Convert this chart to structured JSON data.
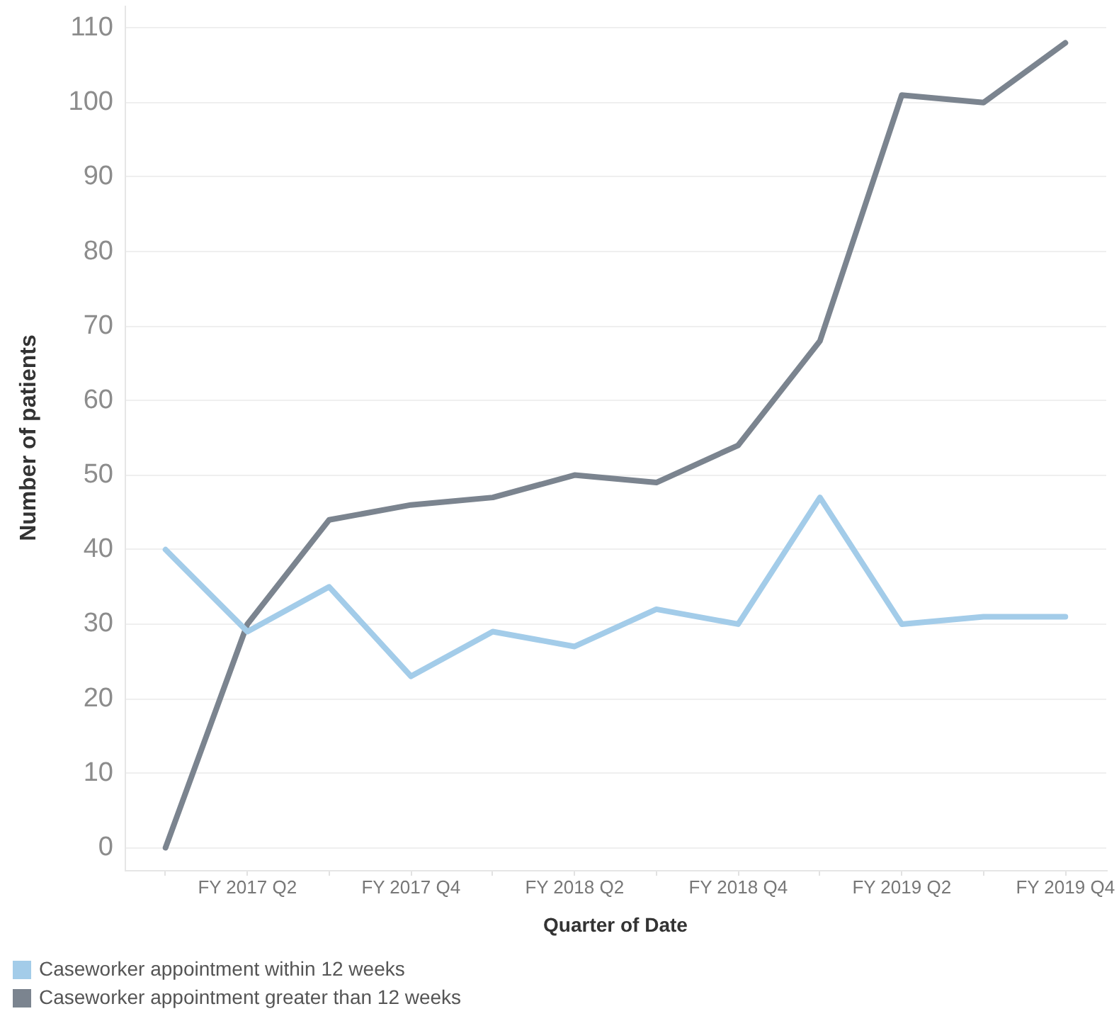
{
  "chart_data": {
    "type": "line",
    "xlabel": "Quarter of Date",
    "ylabel": "Number of patients",
    "categories": [
      null,
      "FY 2017 Q2",
      null,
      "FY 2017 Q4",
      null,
      "FY 2018 Q2",
      null,
      "FY 2018 Q4",
      null,
      "FY 2019 Q2",
      null,
      "FY 2019 Q4"
    ],
    "series": [
      {
        "name": "Caseworker appointment within 12 weeks",
        "color": "#a3cce9",
        "values": [
          40,
          29,
          35,
          23,
          29,
          27,
          32,
          30,
          47,
          30,
          31,
          31
        ]
      },
      {
        "name": "Caseworker appointment greater than 12 weeks",
        "color": "#7b848f",
        "values": [
          0,
          30,
          44,
          46,
          47,
          50,
          49,
          54,
          68,
          101,
          100,
          108
        ]
      }
    ],
    "ylim": [
      -3,
      113
    ],
    "yticks": [
      0,
      10,
      20,
      30,
      40,
      50,
      60,
      70,
      80,
      90,
      100,
      110
    ],
    "grid": "y",
    "legend": "bottom left",
    "marker": "none",
    "line_style": "solid"
  }
}
